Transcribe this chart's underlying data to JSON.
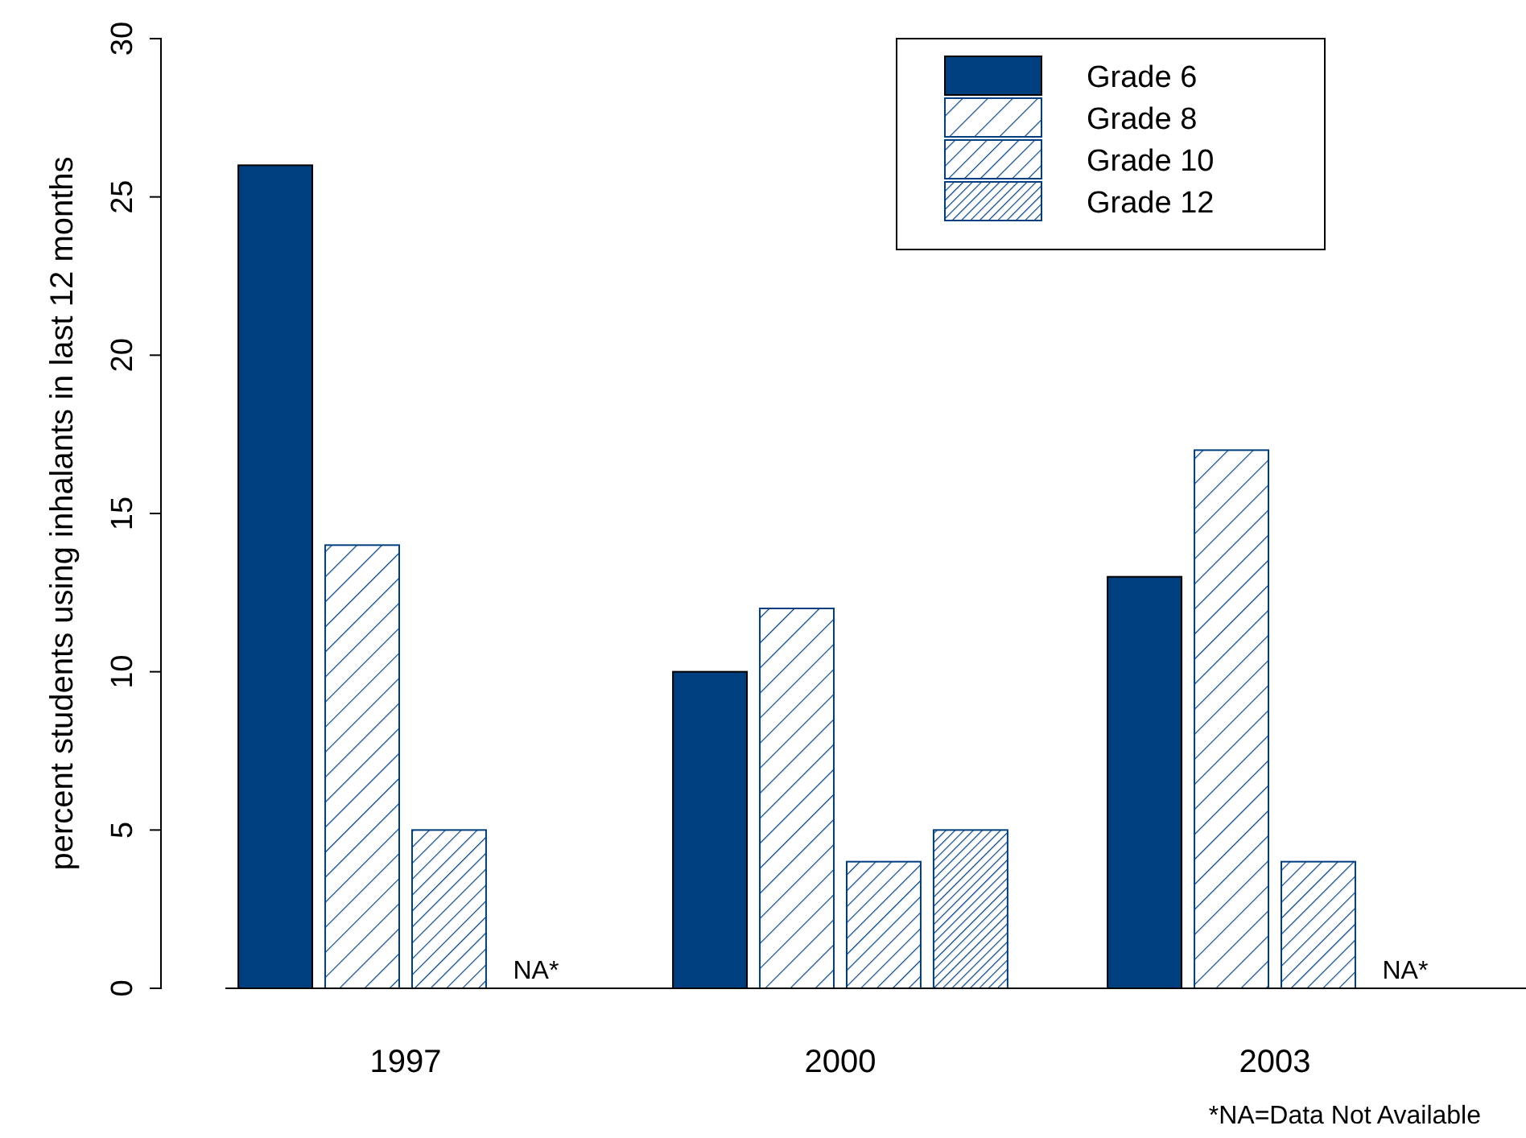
{
  "chart_data": {
    "type": "bar",
    "ylabel": "percent students using inhalants in last 12 months",
    "categories": [
      "1997",
      "2000",
      "2003"
    ],
    "series": [
      {
        "name": "Grade 6",
        "color": "#003f7f",
        "values": [
          26,
          10,
          13
        ]
      },
      {
        "name": "Grade 8",
        "color": "#003f7f",
        "values": [
          14,
          12,
          17
        ]
      },
      {
        "name": "Grade 10",
        "color": "#003f7f",
        "values": [
          5,
          4,
          4
        ]
      },
      {
        "name": "Grade 12",
        "color": "#003f7f",
        "values": [
          null,
          5,
          null
        ]
      }
    ],
    "ylim": [
      0,
      30
    ],
    "yticks": [
      0,
      5,
      10,
      15,
      20,
      25,
      30
    ],
    "legend": "top right",
    "annotations": [
      "NA*",
      "NA*",
      "*NA=Data Not Available"
    ]
  }
}
